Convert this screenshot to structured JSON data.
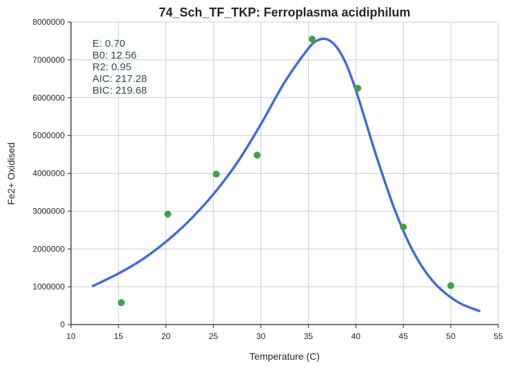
{
  "chart_data": {
    "type": "scatter",
    "title": "74_Sch_TF_TKP: Ferroplasma acidiphilum",
    "xlabel": "Temperature (C)",
    "ylabel": "Fe2+ Oxidised",
    "xlim": [
      10,
      55
    ],
    "ylim": [
      0,
      8000000
    ],
    "xticks": [
      10,
      15,
      20,
      25,
      30,
      35,
      40,
      45,
      50,
      55
    ],
    "yticks": [
      0,
      1000000,
      2000000,
      3000000,
      4000000,
      5000000,
      6000000,
      7000000,
      8000000
    ],
    "xtick_labels": [
      "10",
      "15",
      "20",
      "25",
      "30",
      "35",
      "40",
      "45",
      "50",
      "55"
    ],
    "ytick_labels": [
      "0",
      "1000000",
      "2000000",
      "3000000",
      "4000000",
      "5000000",
      "6000000",
      "7000000",
      "8000000"
    ],
    "grid": true,
    "points": {
      "x": [
        15.3,
        20.2,
        25.3,
        29.6,
        35.4,
        40.2,
        45.0,
        50.0
      ],
      "y": [
        580000,
        2920000,
        3980000,
        4480000,
        7550000,
        6250000,
        2580000,
        1030000
      ],
      "color": "#43a047"
    },
    "fit_curve": {
      "x": [
        12.3,
        15.0,
        17.5,
        20.0,
        22.5,
        25.0,
        27.5,
        30.0,
        32.5,
        35.0,
        36.0,
        37.0,
        38.0,
        39.0,
        40.0,
        41.0,
        42.0,
        43.0,
        44.0,
        45.0,
        46.0,
        47.0,
        48.0,
        49.0,
        50.0,
        51.0,
        52.0,
        53.0
      ],
      "y": [
        1020000,
        1350000,
        1720000,
        2190000,
        2760000,
        3450000,
        4280000,
        5300000,
        6410000,
        7300000,
        7520000,
        7540000,
        7330000,
        6880000,
        6200000,
        5400000,
        4580000,
        3820000,
        3100000,
        2480000,
        1950000,
        1520000,
        1180000,
        920000,
        720000,
        560000,
        450000,
        360000
      ],
      "color": "#4169e1"
    },
    "stats": [
      "E:  0.70",
      "B0:  12.56",
      "R2:  0.95",
      "AIC: 217.28",
      "BIC: 219.68"
    ]
  }
}
